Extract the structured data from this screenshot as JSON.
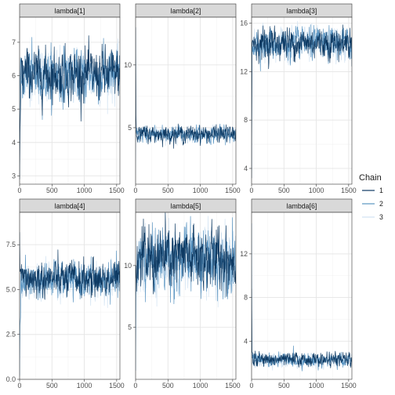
{
  "chart_data": {
    "type": "line",
    "legend": {
      "title": "Chain",
      "position": "right",
      "entries": [
        {
          "label": "1",
          "color": "#0e3a63"
        },
        {
          "label": "2",
          "color": "#5b95c2"
        },
        {
          "label": "3",
          "color": "#d2e3f2"
        }
      ]
    },
    "panels": [
      {
        "title": "lambda[1]",
        "xlim": [
          0,
          1550
        ],
        "xticks": [
          0,
          500,
          1000,
          1500
        ],
        "ylim": [
          2.75,
          7.75
        ],
        "yticks": [
          3,
          4,
          5,
          6,
          7
        ],
        "init": [
          [
            2.9,
            4.3
          ],
          [
            3.0,
            5.5
          ],
          [
            3.1,
            6.0
          ]
        ],
        "series": [
          {
            "name": "1",
            "mean": 6.05,
            "sd": 0.35
          },
          {
            "name": "2",
            "mean": 6.0,
            "sd": 0.35
          },
          {
            "name": "3",
            "mean": 6.0,
            "sd": 0.35
          }
        ]
      },
      {
        "title": "lambda[2]",
        "xlim": [
          0,
          1550
        ],
        "xticks": [
          0,
          500,
          1000,
          1500
        ],
        "ylim": [
          0.5,
          13.8
        ],
        "yticks": [
          5,
          10
        ],
        "init": [
          [
            13.0,
            6.0
          ],
          [
            4.5,
            4.8
          ],
          [
            1.2,
            4.0
          ]
        ],
        "series": [
          {
            "name": "1",
            "mean": 4.5,
            "sd": 0.3
          },
          {
            "name": "2",
            "mean": 4.45,
            "sd": 0.3
          },
          {
            "name": "3",
            "mean": 4.5,
            "sd": 0.3
          }
        ]
      },
      {
        "title": "lambda[3]",
        "xlim": [
          0,
          1550
        ],
        "xticks": [
          0,
          500,
          1000,
          1500
        ],
        "ylim": [
          2.7,
          16.5
        ],
        "yticks": [
          4,
          8,
          12,
          16
        ],
        "init": [
          [
            3.2,
            14.0
          ],
          [
            3.8,
            14.5
          ],
          [
            4.5,
            13.5
          ]
        ],
        "series": [
          {
            "name": "1",
            "mean": 14.4,
            "sd": 0.6
          },
          {
            "name": "2",
            "mean": 14.3,
            "sd": 0.6
          },
          {
            "name": "3",
            "mean": 14.2,
            "sd": 0.6
          }
        ]
      },
      {
        "title": "lambda[4]",
        "xlim": [
          0,
          1550
        ],
        "xticks": [
          0,
          500,
          1000,
          1500
        ],
        "ylim": [
          0,
          9.3
        ],
        "yticks": [
          0.0,
          2.5,
          5.0,
          7.5
        ],
        "yticklabels": [
          "0.0",
          "2.5",
          "5.0",
          "7.5"
        ],
        "init": [
          [
            8.2,
            6.0
          ],
          [
            0.2,
            3.0
          ],
          [
            1.0,
            4.5
          ]
        ],
        "series": [
          {
            "name": "1",
            "mean": 5.6,
            "sd": 0.45
          },
          {
            "name": "2",
            "mean": 5.5,
            "sd": 0.45
          },
          {
            "name": "3",
            "mean": 5.5,
            "sd": 0.45
          }
        ]
      },
      {
        "title": "lambda[5]",
        "xlim": [
          0,
          1550
        ],
        "xticks": [
          0,
          500,
          1000,
          1500
        ],
        "ylim": [
          0.8,
          14.3
        ],
        "yticks": [
          5,
          10
        ],
        "init": [
          [
            9.0,
            10.0
          ],
          [
            1.5,
            7.5
          ],
          [
            4.0,
            9.0
          ]
        ],
        "series": [
          {
            "name": "1",
            "mean": 10.6,
            "sd": 1.2
          },
          {
            "name": "2",
            "mean": 10.5,
            "sd": 1.2
          },
          {
            "name": "3",
            "mean": 10.4,
            "sd": 1.2
          }
        ]
      },
      {
        "title": "lambda[6]",
        "xlim": [
          0,
          1550
        ],
        "xticks": [
          0,
          500,
          1000,
          1500
        ],
        "ylim": [
          0.5,
          15.8
        ],
        "yticks": [
          4,
          8,
          12
        ],
        "init": [
          [
            8.8,
            3.0
          ],
          [
            14.8,
            2.5
          ],
          [
            7.0,
            2.0
          ]
        ],
        "series": [
          {
            "name": "1",
            "mean": 2.3,
            "sd": 0.28
          },
          {
            "name": "2",
            "mean": 2.25,
            "sd": 0.28
          },
          {
            "name": "3",
            "mean": 2.2,
            "sd": 0.28
          }
        ]
      }
    ]
  }
}
